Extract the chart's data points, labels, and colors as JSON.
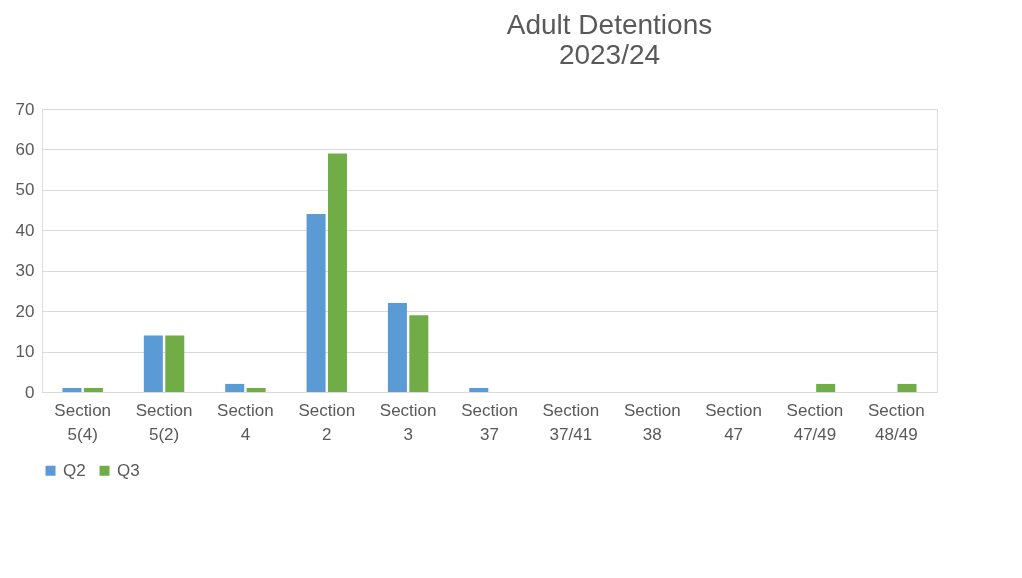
{
  "chart_data": {
    "type": "bar",
    "title": "Adult Detentions\n2023/24",
    "categories": [
      "Section 5(4)",
      "Section 5(2)",
      "Section 4",
      "Section 2",
      "Section 3",
      "Section 37",
      "Section 37/41",
      "Section 38",
      "Section 47",
      "Section 47/49",
      "Section 48/49"
    ],
    "series": [
      {
        "name": "Q2",
        "color": "#5b9bd5",
        "values": [
          1,
          14,
          2,
          44,
          22,
          1,
          0,
          0,
          0,
          0,
          0
        ]
      },
      {
        "name": "Q3",
        "color": "#70ad47",
        "values": [
          1,
          14,
          1,
          59,
          19,
          0,
          0,
          0,
          0,
          2,
          2
        ]
      }
    ],
    "ylim": [
      0,
      70
    ],
    "yticks": [
      0,
      10,
      20,
      30,
      40,
      50,
      60,
      70
    ],
    "grid": "y",
    "legend": "bottom"
  }
}
